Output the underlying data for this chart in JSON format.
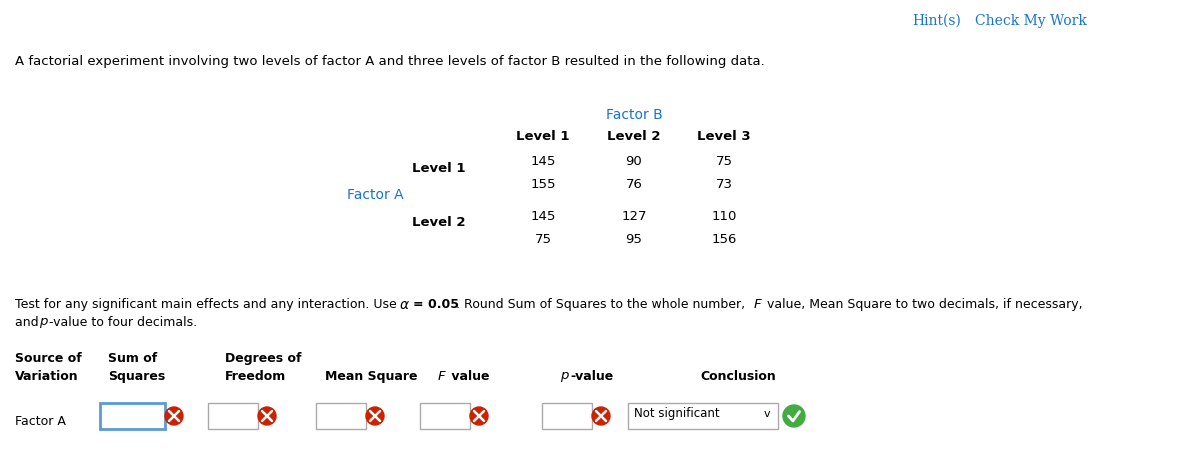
{
  "hint_text": "Hint(s)",
  "check_text": "Check My Work",
  "hint_color": "#1874CD",
  "intro_text": "A factorial experiment involving two levels of factor A and three levels of factor B resulted in the following data.",
  "factor_b_label": "Factor B",
  "factor_b_color": "#1874CD",
  "factor_a_label": "Factor A",
  "factor_a_color": "#1874CD",
  "col_headers": [
    "Level 1",
    "Level 2",
    "Level 3"
  ],
  "data_values": [
    [
      145,
      90,
      75
    ],
    [
      155,
      76,
      73
    ],
    [
      145,
      127,
      110
    ],
    [
      75,
      95,
      156
    ]
  ],
  "row_label": "Factor A",
  "conclusion_text": "Not significant",
  "bg_color": "#ffffff",
  "text_color": "#000000"
}
